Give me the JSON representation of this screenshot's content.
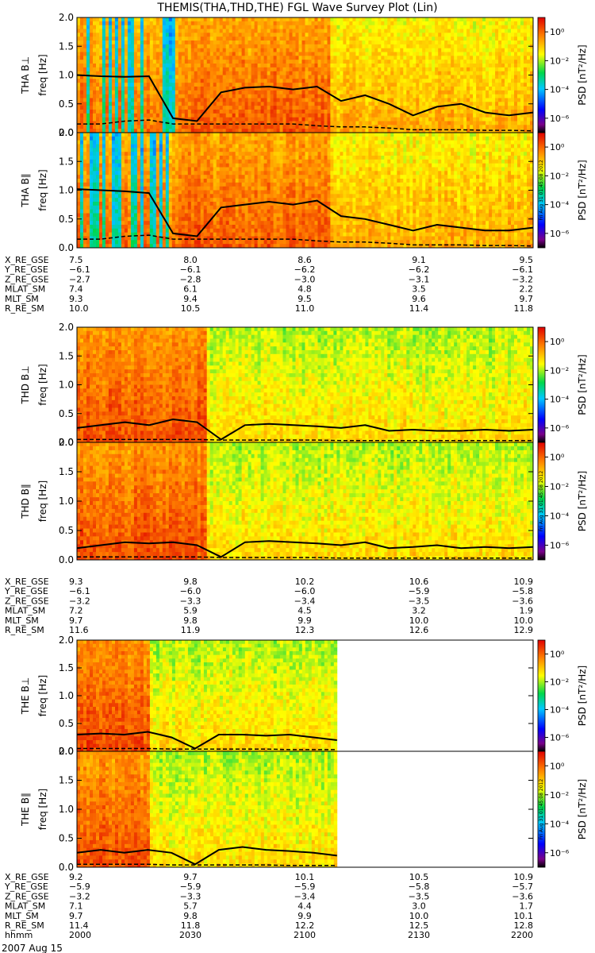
{
  "title": "THEMIS(THA,THD,THE) FGL Wave Survey Plot (Lin)",
  "date_label": "2007 Aug 15",
  "colorbar": {
    "label": "PSD [nT²/Hz]",
    "ticks": [
      "10⁰",
      "10⁻²",
      "10⁻⁴",
      "10⁻⁶"
    ],
    "log_values": [
      0,
      -2,
      -4,
      -6
    ],
    "log_range": [
      -7,
      1
    ]
  },
  "stamp": "Fri Aug 31 01:45:08 2012",
  "colors": {
    "mean_line": "#000000",
    "gyro_line": "#000000"
  },
  "chart_data": [
    {
      "type": "heatmap",
      "probe": "THA",
      "panel": "B⊥",
      "ylabel": "THA B⊥",
      "yunit": "freq [Hz]",
      "ylim": [
        0,
        2.0
      ],
      "yticks": [
        "0.0",
        "0.5",
        "1.0",
        "1.5",
        "2.0"
      ],
      "time_range_hhmm": [
        "1925",
        "2010"
      ],
      "data_fraction": 1.0,
      "mean_freq": [
        1.0,
        0.98,
        0.97,
        0.98,
        0.25,
        0.2,
        0.7,
        0.78,
        0.8,
        0.75,
        0.8,
        0.55,
        0.65,
        0.5,
        0.3,
        0.45,
        0.5,
        0.35,
        0.3,
        0.35
      ],
      "gyro_freq": [
        0.15,
        0.15,
        0.2,
        0.22,
        0.15,
        0.15,
        0.15,
        0.15,
        0.15,
        0.15,
        0.12,
        0.1,
        0.1,
        0.08,
        0.05,
        0.05,
        0.05,
        0.04,
        0.04,
        0.03
      ]
    },
    {
      "type": "heatmap",
      "probe": "THA",
      "panel": "B∥",
      "ylabel": "THA B∥",
      "yunit": "freq [Hz]",
      "ylim": [
        0,
        2.0
      ],
      "yticks": [
        "0.0",
        "0.5",
        "1.0",
        "1.5",
        "2.0"
      ],
      "time_range_hhmm": [
        "1925",
        "2010"
      ],
      "data_fraction": 1.0,
      "mean_freq": [
        1.02,
        1.0,
        0.98,
        0.95,
        0.25,
        0.2,
        0.7,
        0.75,
        0.8,
        0.75,
        0.82,
        0.55,
        0.5,
        0.4,
        0.3,
        0.4,
        0.35,
        0.3,
        0.3,
        0.35
      ],
      "gyro_freq": [
        0.15,
        0.15,
        0.2,
        0.22,
        0.15,
        0.15,
        0.15,
        0.15,
        0.15,
        0.15,
        0.12,
        0.1,
        0.1,
        0.08,
        0.05,
        0.05,
        0.05,
        0.04,
        0.04,
        0.03
      ]
    },
    {
      "type": "heatmap",
      "probe": "THD",
      "panel": "B⊥",
      "ylabel": "THD B⊥",
      "yunit": "freq [Hz]",
      "ylim": [
        0,
        2.0
      ],
      "yticks": [
        "0.0",
        "0.5",
        "1.0",
        "1.5",
        "2.0"
      ],
      "time_range_hhmm": [
        "2000",
        "2200"
      ],
      "data_fraction": 1.0,
      "mean_freq": [
        0.25,
        0.3,
        0.35,
        0.3,
        0.4,
        0.35,
        0.05,
        0.3,
        0.32,
        0.3,
        0.28,
        0.25,
        0.3,
        0.2,
        0.22,
        0.2,
        0.2,
        0.22,
        0.2,
        0.22
      ],
      "gyro_freq": [
        0.05,
        0.05,
        0.05,
        0.05,
        0.05,
        0.05,
        0.04,
        0.04,
        0.04,
        0.04,
        0.04,
        0.03,
        0.03,
        0.03,
        0.03,
        0.03,
        0.03,
        0.03,
        0.03,
        0.03
      ]
    },
    {
      "type": "heatmap",
      "probe": "THD",
      "panel": "B∥",
      "ylabel": "THD B∥",
      "yunit": "freq [Hz]",
      "ylim": [
        0,
        2.0
      ],
      "yticks": [
        "0.0",
        "0.5",
        "1.0",
        "1.5",
        "2.0"
      ],
      "time_range_hhmm": [
        "2000",
        "2200"
      ],
      "data_fraction": 1.0,
      "mean_freq": [
        0.2,
        0.25,
        0.3,
        0.28,
        0.3,
        0.25,
        0.05,
        0.3,
        0.32,
        0.3,
        0.28,
        0.25,
        0.3,
        0.2,
        0.22,
        0.25,
        0.2,
        0.22,
        0.2,
        0.22
      ],
      "gyro_freq": [
        0.05,
        0.05,
        0.05,
        0.05,
        0.05,
        0.05,
        0.04,
        0.04,
        0.04,
        0.04,
        0.04,
        0.03,
        0.03,
        0.03,
        0.03,
        0.03,
        0.03,
        0.03,
        0.03,
        0.03
      ]
    },
    {
      "type": "heatmap",
      "probe": "THE",
      "panel": "B⊥",
      "ylabel": "THE B⊥",
      "yunit": "freq [Hz]",
      "ylim": [
        0,
        2.0
      ],
      "yticks": [
        "0.0",
        "0.5",
        "1.0",
        "1.5",
        "2.0"
      ],
      "time_range_hhmm": [
        "2000",
        "2200"
      ],
      "data_fraction": 0.57,
      "mean_freq": [
        0.3,
        0.32,
        0.3,
        0.35,
        0.25,
        0.05,
        0.3,
        0.3,
        0.28,
        0.3,
        0.25,
        0.2
      ],
      "gyro_freq": [
        0.05,
        0.05,
        0.05,
        0.05,
        0.04,
        0.04,
        0.04,
        0.04,
        0.04,
        0.03,
        0.03,
        0.03
      ]
    },
    {
      "type": "heatmap",
      "probe": "THE",
      "panel": "B∥",
      "ylabel": "THE B∥",
      "yunit": "freq [Hz]",
      "ylim": [
        0,
        2.0
      ],
      "yticks": [
        "0.0",
        "0.5",
        "1.0",
        "1.5",
        "2.0"
      ],
      "time_range_hhmm": [
        "2000",
        "2200"
      ],
      "data_fraction": 0.57,
      "mean_freq": [
        0.25,
        0.3,
        0.25,
        0.3,
        0.25,
        0.05,
        0.3,
        0.35,
        0.3,
        0.28,
        0.25,
        0.2
      ],
      "gyro_freq": [
        0.05,
        0.05,
        0.05,
        0.05,
        0.04,
        0.04,
        0.04,
        0.04,
        0.04,
        0.03,
        0.03,
        0.03
      ]
    }
  ],
  "ephemeris": [
    {
      "rows": [
        {
          "label": "X_RE_GSE",
          "values": [
            "7.5",
            "8.0",
            "8.6",
            "9.1",
            "9.5"
          ]
        },
        {
          "label": "Y_RE_GSE",
          "values": [
            "−6.1",
            "−6.1",
            "−6.2",
            "−6.2",
            "−6.1"
          ]
        },
        {
          "label": "Z_RE_GSE",
          "values": [
            "−2.7",
            "−2.8",
            "−3.0",
            "−3.1",
            "−3.2"
          ]
        },
        {
          "label": "MLAT_SM",
          "values": [
            "7.4",
            "6.1",
            "4.8",
            "3.5",
            "2.2"
          ]
        },
        {
          "label": "MLT_SM",
          "values": [
            "9.3",
            "9.4",
            "9.5",
            "9.6",
            "9.7"
          ]
        },
        {
          "label": "R_RE_SM",
          "values": [
            "10.0",
            "10.5",
            "11.0",
            "11.4",
            "11.8"
          ]
        }
      ]
    },
    {
      "rows": [
        {
          "label": "X_RE_GSE",
          "values": [
            "9.3",
            "9.8",
            "10.2",
            "10.6",
            "10.9"
          ]
        },
        {
          "label": "Y_RE_GSE",
          "values": [
            "−6.1",
            "−6.0",
            "−6.0",
            "−5.9",
            "−5.8"
          ]
        },
        {
          "label": "Z_RE_GSE",
          "values": [
            "−3.2",
            "−3.3",
            "−3.4",
            "−3.5",
            "−3.6"
          ]
        },
        {
          "label": "MLAT_SM",
          "values": [
            "7.2",
            "5.9",
            "4.5",
            "3.2",
            "1.9"
          ]
        },
        {
          "label": "MLT_SM",
          "values": [
            "9.7",
            "9.8",
            "9.9",
            "10.0",
            "10.0"
          ]
        },
        {
          "label": "R_RE_SM",
          "values": [
            "11.6",
            "11.9",
            "12.3",
            "12.6",
            "12.9"
          ]
        }
      ]
    },
    {
      "rows": [
        {
          "label": "X_RE_GSE",
          "values": [
            "9.2",
            "9.7",
            "10.1",
            "10.5",
            "10.9"
          ]
        },
        {
          "label": "Y_RE_GSE",
          "values": [
            "−5.9",
            "−5.9",
            "−5.9",
            "−5.8",
            "−5.7"
          ]
        },
        {
          "label": "Z_RE_GSE",
          "values": [
            "−3.2",
            "−3.3",
            "−3.4",
            "−3.5",
            "−3.6"
          ]
        },
        {
          "label": "MLAT_SM",
          "values": [
            "7.1",
            "5.7",
            "4.4",
            "3.0",
            "1.7"
          ]
        },
        {
          "label": "MLT_SM",
          "values": [
            "9.7",
            "9.8",
            "9.9",
            "10.0",
            "10.1"
          ]
        },
        {
          "label": "R_RE_SM",
          "values": [
            "11.4",
            "11.8",
            "12.2",
            "12.5",
            "12.8"
          ]
        },
        {
          "label": "hhmm",
          "values": [
            "2000",
            "2030",
            "2100",
            "2130",
            "2200"
          ]
        }
      ]
    }
  ]
}
